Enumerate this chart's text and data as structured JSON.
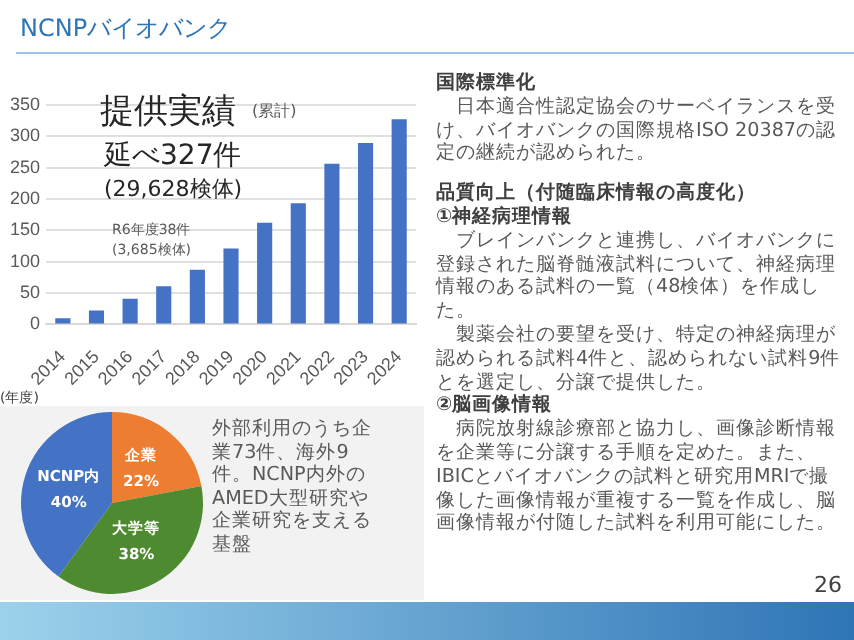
{
  "chart_data": [
    {
      "type": "bar",
      "title": "提供実績",
      "subtitle": "(累計)",
      "xlabel": "(年度)",
      "categories": [
        "2014",
        "2015",
        "2016",
        "2017",
        "2018",
        "2019",
        "2020",
        "2021",
        "2022",
        "2023",
        "2024"
      ],
      "values": [
        10,
        22,
        41,
        61,
        87,
        121,
        162,
        193,
        256,
        289,
        327
      ],
      "color": "#4472c4",
      "ylim": [
        0,
        350
      ],
      "yticks": [
        0,
        50,
        100,
        150,
        200,
        250,
        300,
        350
      ],
      "grid": "y",
      "legend": false,
      "annotations": [
        "延べ327件",
        "(29,628検体)",
        "R6年度38件",
        "(3,685検体)"
      ]
    },
    {
      "type": "pie",
      "categories": [
        "企業",
        "大学等",
        "NCNP内"
      ],
      "values": [
        22,
        38,
        40
      ],
      "colors": [
        "#ed7d31",
        "#4e8a2f",
        "#4472c4"
      ],
      "value_labels": [
        "22%",
        "38%",
        "40%"
      ],
      "legend": false,
      "annotations": [
        "外部利用のうち企業73件、海外9件。NCNP内外のAMED大型研究や企業研究を支える基盤"
      ]
    },
    {
      "type": "other",
      "title": "NCNPバイオバンク",
      "annotations": [
        "国際標準化",
        "　日本適合性認定協会のサーベイランスを受け、バイオバンクの国際規格ISO 20387の認定の継続が認められた。",
        "品質向上（付随臨床情報の高度化）",
        "①神経病理情報",
        "　ブレインバンクと連携し、バイオバンクに登録された脳脊髄液試料について、神経病理情報のある試料の一覧（48検体）を作成した。",
        "　製薬会社の要望を受け、特定の神経病理が認められる試料4件と、認められない試料9件とを選定し、分譲で提供した。",
        "②脳画像情報",
        "　病院放射線診療部と協力し、画像診断情報を企業等に分譲する手順を定めた。また、IBICとバイオバンクの試料と研究用MRIで撮像した画像情報が重複する一覧を作成し、脳画像情報が付随した試料を利用可能にした。",
        "26"
      ]
    }
  ]
}
